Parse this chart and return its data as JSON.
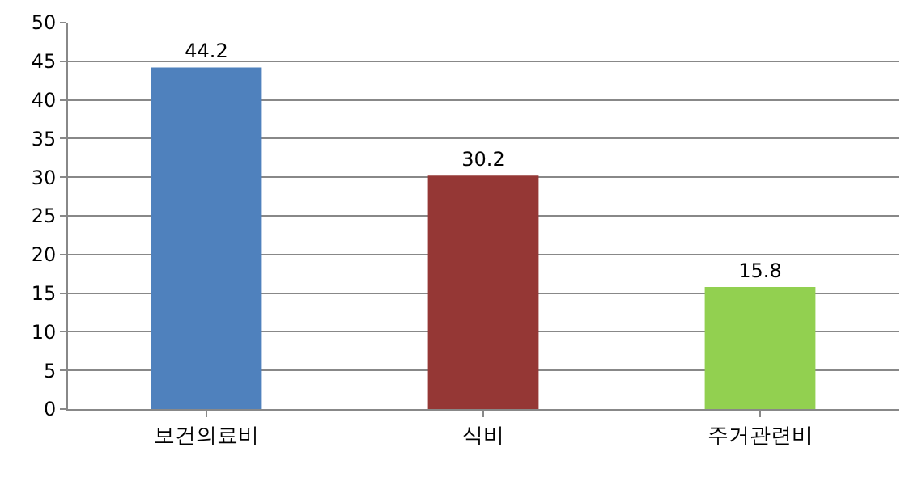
{
  "chart_data": {
    "type": "bar",
    "categories": [
      "보건의료비",
      "식비",
      "주거관련비"
    ],
    "values": [
      44.2,
      30.2,
      15.8
    ],
    "colors": [
      "#4f81bd",
      "#953735",
      "#92d050"
    ],
    "ylim": [
      0,
      50
    ],
    "yticks": [
      0,
      5,
      10,
      15,
      20,
      25,
      30,
      35,
      40,
      45,
      50
    ],
    "grid": "y",
    "data_labels": true
  }
}
